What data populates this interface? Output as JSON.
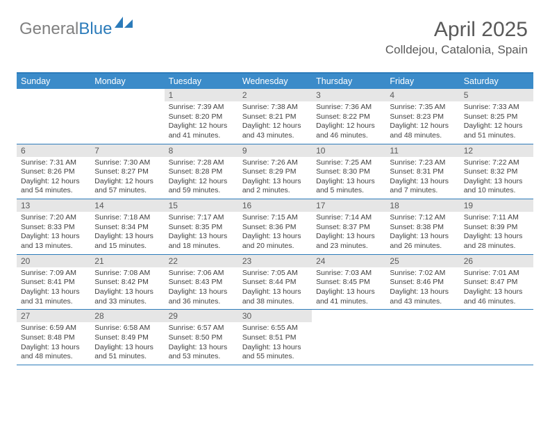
{
  "logo": {
    "text_gray": "General",
    "text_blue": "Blue",
    "gray_color": "#808080",
    "blue_color": "#2b7bba"
  },
  "header": {
    "month_title": "April 2025",
    "location": "Colldejou, Catalonia, Spain",
    "title_color": "#595959",
    "title_fontsize": 30,
    "location_fontsize": 17
  },
  "calendar": {
    "header_bg": "#3b8bc9",
    "header_fg": "#ffffff",
    "border_color": "#2b7bba",
    "daynum_bg": "#e6e6e6",
    "daynum_fg": "#595959",
    "body_fg": "#404040",
    "days_of_week": [
      "Sunday",
      "Monday",
      "Tuesday",
      "Wednesday",
      "Thursday",
      "Friday",
      "Saturday"
    ],
    "weeks": [
      [
        null,
        null,
        {
          "n": "1",
          "sr": "Sunrise: 7:39 AM",
          "ss": "Sunset: 8:20 PM",
          "dl": "Daylight: 12 hours and 41 minutes."
        },
        {
          "n": "2",
          "sr": "Sunrise: 7:38 AM",
          "ss": "Sunset: 8:21 PM",
          "dl": "Daylight: 12 hours and 43 minutes."
        },
        {
          "n": "3",
          "sr": "Sunrise: 7:36 AM",
          "ss": "Sunset: 8:22 PM",
          "dl": "Daylight: 12 hours and 46 minutes."
        },
        {
          "n": "4",
          "sr": "Sunrise: 7:35 AM",
          "ss": "Sunset: 8:23 PM",
          "dl": "Daylight: 12 hours and 48 minutes."
        },
        {
          "n": "5",
          "sr": "Sunrise: 7:33 AM",
          "ss": "Sunset: 8:25 PM",
          "dl": "Daylight: 12 hours and 51 minutes."
        }
      ],
      [
        {
          "n": "6",
          "sr": "Sunrise: 7:31 AM",
          "ss": "Sunset: 8:26 PM",
          "dl": "Daylight: 12 hours and 54 minutes."
        },
        {
          "n": "7",
          "sr": "Sunrise: 7:30 AM",
          "ss": "Sunset: 8:27 PM",
          "dl": "Daylight: 12 hours and 57 minutes."
        },
        {
          "n": "8",
          "sr": "Sunrise: 7:28 AM",
          "ss": "Sunset: 8:28 PM",
          "dl": "Daylight: 12 hours and 59 minutes."
        },
        {
          "n": "9",
          "sr": "Sunrise: 7:26 AM",
          "ss": "Sunset: 8:29 PM",
          "dl": "Daylight: 13 hours and 2 minutes."
        },
        {
          "n": "10",
          "sr": "Sunrise: 7:25 AM",
          "ss": "Sunset: 8:30 PM",
          "dl": "Daylight: 13 hours and 5 minutes."
        },
        {
          "n": "11",
          "sr": "Sunrise: 7:23 AM",
          "ss": "Sunset: 8:31 PM",
          "dl": "Daylight: 13 hours and 7 minutes."
        },
        {
          "n": "12",
          "sr": "Sunrise: 7:22 AM",
          "ss": "Sunset: 8:32 PM",
          "dl": "Daylight: 13 hours and 10 minutes."
        }
      ],
      [
        {
          "n": "13",
          "sr": "Sunrise: 7:20 AM",
          "ss": "Sunset: 8:33 PM",
          "dl": "Daylight: 13 hours and 13 minutes."
        },
        {
          "n": "14",
          "sr": "Sunrise: 7:18 AM",
          "ss": "Sunset: 8:34 PM",
          "dl": "Daylight: 13 hours and 15 minutes."
        },
        {
          "n": "15",
          "sr": "Sunrise: 7:17 AM",
          "ss": "Sunset: 8:35 PM",
          "dl": "Daylight: 13 hours and 18 minutes."
        },
        {
          "n": "16",
          "sr": "Sunrise: 7:15 AM",
          "ss": "Sunset: 8:36 PM",
          "dl": "Daylight: 13 hours and 20 minutes."
        },
        {
          "n": "17",
          "sr": "Sunrise: 7:14 AM",
          "ss": "Sunset: 8:37 PM",
          "dl": "Daylight: 13 hours and 23 minutes."
        },
        {
          "n": "18",
          "sr": "Sunrise: 7:12 AM",
          "ss": "Sunset: 8:38 PM",
          "dl": "Daylight: 13 hours and 26 minutes."
        },
        {
          "n": "19",
          "sr": "Sunrise: 7:11 AM",
          "ss": "Sunset: 8:39 PM",
          "dl": "Daylight: 13 hours and 28 minutes."
        }
      ],
      [
        {
          "n": "20",
          "sr": "Sunrise: 7:09 AM",
          "ss": "Sunset: 8:41 PM",
          "dl": "Daylight: 13 hours and 31 minutes."
        },
        {
          "n": "21",
          "sr": "Sunrise: 7:08 AM",
          "ss": "Sunset: 8:42 PM",
          "dl": "Daylight: 13 hours and 33 minutes."
        },
        {
          "n": "22",
          "sr": "Sunrise: 7:06 AM",
          "ss": "Sunset: 8:43 PM",
          "dl": "Daylight: 13 hours and 36 minutes."
        },
        {
          "n": "23",
          "sr": "Sunrise: 7:05 AM",
          "ss": "Sunset: 8:44 PM",
          "dl": "Daylight: 13 hours and 38 minutes."
        },
        {
          "n": "24",
          "sr": "Sunrise: 7:03 AM",
          "ss": "Sunset: 8:45 PM",
          "dl": "Daylight: 13 hours and 41 minutes."
        },
        {
          "n": "25",
          "sr": "Sunrise: 7:02 AM",
          "ss": "Sunset: 8:46 PM",
          "dl": "Daylight: 13 hours and 43 minutes."
        },
        {
          "n": "26",
          "sr": "Sunrise: 7:01 AM",
          "ss": "Sunset: 8:47 PM",
          "dl": "Daylight: 13 hours and 46 minutes."
        }
      ],
      [
        {
          "n": "27",
          "sr": "Sunrise: 6:59 AM",
          "ss": "Sunset: 8:48 PM",
          "dl": "Daylight: 13 hours and 48 minutes."
        },
        {
          "n": "28",
          "sr": "Sunrise: 6:58 AM",
          "ss": "Sunset: 8:49 PM",
          "dl": "Daylight: 13 hours and 51 minutes."
        },
        {
          "n": "29",
          "sr": "Sunrise: 6:57 AM",
          "ss": "Sunset: 8:50 PM",
          "dl": "Daylight: 13 hours and 53 minutes."
        },
        {
          "n": "30",
          "sr": "Sunrise: 6:55 AM",
          "ss": "Sunset: 8:51 PM",
          "dl": "Daylight: 13 hours and 55 minutes."
        },
        null,
        null,
        null
      ]
    ]
  }
}
